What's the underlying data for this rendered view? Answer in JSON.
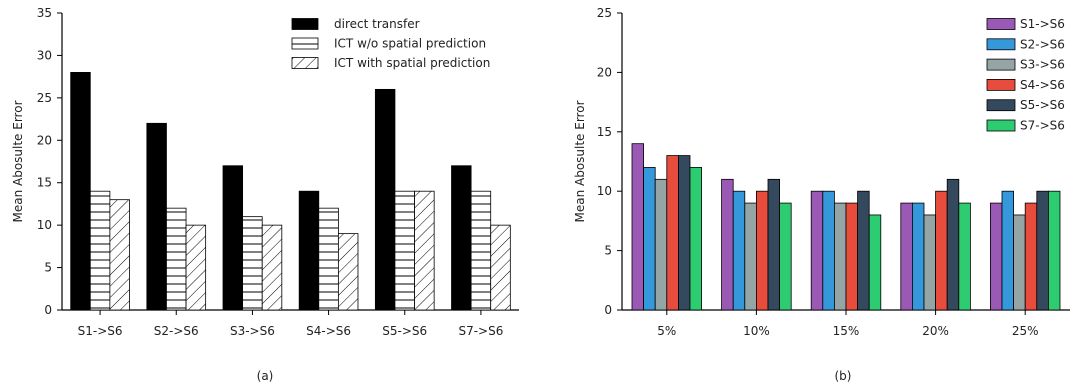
{
  "chart_data": [
    {
      "type": "bar",
      "caption": "(a)",
      "ylabel": "Mean Abosulte Error",
      "xlabel": "",
      "ylim": [
        0,
        35
      ],
      "yticks": [
        0,
        5,
        10,
        15,
        20,
        25,
        30,
        35
      ],
      "categories": [
        "S1->S6",
        "S2->S6",
        "S3->S6",
        "S4->S6",
        "S5->S6",
        "S7->S6"
      ],
      "legend_position": "top-right",
      "series": [
        {
          "name": "direct transfer",
          "fill": "#000000",
          "pattern": "solid",
          "values": [
            28,
            22,
            17,
            14,
            26,
            17
          ]
        },
        {
          "name": "ICT w/o spatial prediction",
          "fill": "#ffffff",
          "pattern": "horizontal-hatch",
          "values": [
            14,
            12,
            11,
            12,
            14,
            14
          ]
        },
        {
          "name": "ICT with spatial prediction",
          "fill": "#ffffff",
          "pattern": "diagonal-hatch",
          "values": [
            13,
            10,
            10,
            9,
            14,
            10
          ]
        }
      ]
    },
    {
      "type": "bar",
      "caption": "(b)",
      "ylabel": "Mean Abosulte Error",
      "xlabel": "",
      "ylim": [
        0,
        25
      ],
      "yticks": [
        0,
        5,
        10,
        15,
        20,
        25
      ],
      "categories": [
        "5%",
        "10%",
        "15%",
        "20%",
        "25%"
      ],
      "legend_position": "top-right",
      "series": [
        {
          "name": "S1->S6",
          "fill": "#9b59b6",
          "values": [
            14,
            11,
            10,
            9,
            9
          ]
        },
        {
          "name": "S2->S6",
          "fill": "#3498db",
          "values": [
            12,
            10,
            10,
            9,
            10
          ]
        },
        {
          "name": "S3->S6",
          "fill": "#95a5a6",
          "values": [
            11,
            9,
            9,
            8,
            8
          ]
        },
        {
          "name": "S4->S6",
          "fill": "#e74c3c",
          "values": [
            13,
            10,
            9,
            10,
            9
          ]
        },
        {
          "name": "S5->S6",
          "fill": "#34495e",
          "values": [
            13,
            11,
            10,
            11,
            10
          ]
        },
        {
          "name": "S7->S6",
          "fill": "#2ecc71",
          "values": [
            12,
            9,
            8,
            9,
            10
          ]
        }
      ]
    }
  ]
}
